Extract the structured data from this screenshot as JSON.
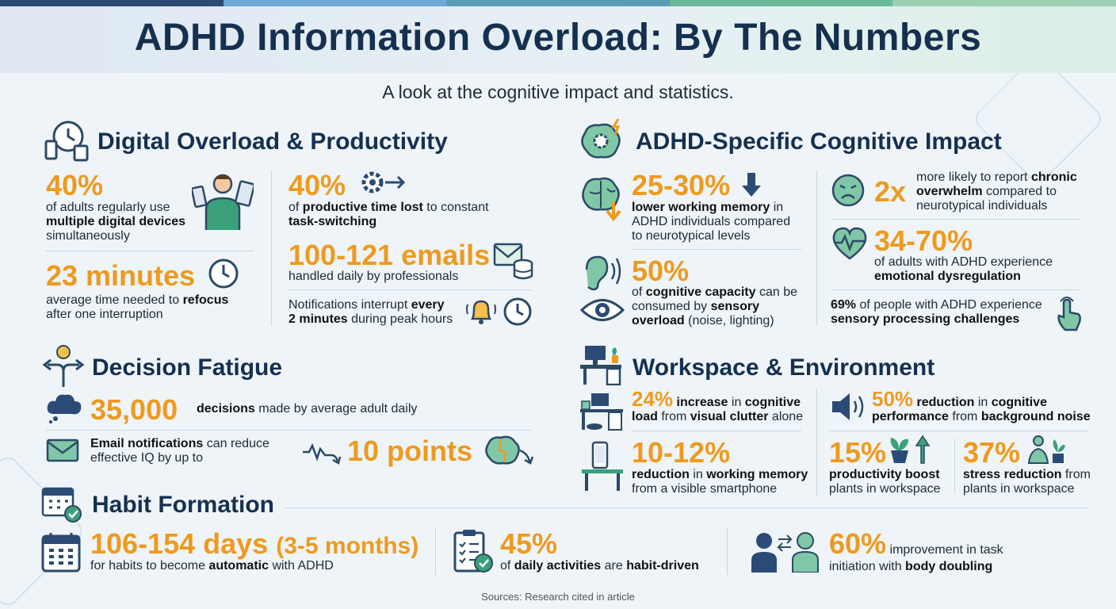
{
  "title": "ADHD Information Overload: By The Numbers",
  "subtitle": "A look at the cognitive impact and statistics.",
  "colors": {
    "accent": "#ee9a1f",
    "navy": "#15304f",
    "teal": "#3aa07a",
    "slate": "#2c4a66"
  },
  "digital": {
    "title": "Digital Overload & Productivity",
    "stat1": {
      "value": "40%",
      "line1": "of adults regularly use",
      "bold": "multiple digital devices",
      "line3": "simultaneously"
    },
    "stat2": {
      "value": "40%",
      "pre": "of ",
      "bold1": "productive time lost",
      "mid": " to constant ",
      "bold2": "task-switching"
    },
    "stat3": {
      "value": "23 minutes",
      "pre": "average time needed to ",
      "bold": "refocus",
      "post": "after one interruption"
    },
    "stat4": {
      "value": "100-121 emails",
      "text": "handled daily by professionals"
    },
    "stat5": {
      "pre": "Notifications interrupt ",
      "bold1": "every",
      "bold2": "2 minutes",
      "post": " during peak hours"
    }
  },
  "cognitive": {
    "title": "ADHD-Specific Cognitive Impact",
    "stat1": {
      "value": "25-30%",
      "bold": "lower working memory",
      "post1": " in",
      "line2": "ADHD individuals compared",
      "line3": "to neurotypical levels"
    },
    "stat2": {
      "value": "2x",
      "pre": "more likely to report ",
      "bold1": "chronic",
      "bold2": "overwhelm",
      "post": " compared to",
      "line3": "neurotypical individuals"
    },
    "stat3": {
      "value": "50%",
      "pre": "of ",
      "bold1": "cognitive capacity",
      "post1": " can be",
      "pre2": "consumed by ",
      "bold2": "sensory",
      "bold3": "overload",
      "post3": " (noise, lighting)"
    },
    "stat4": {
      "value": "34-70%",
      "line1": "of adults with ADHD experience",
      "bold": "emotional dysregulation"
    },
    "stat5": {
      "bold1": "69%",
      "post1": " of people with ADHD experience",
      "bold2": "sensory processing challenges"
    }
  },
  "decision": {
    "title": "Decision Fatigue",
    "stat1": {
      "value": "35,000",
      "bold": "decisions",
      "post": " made by average adult daily"
    },
    "stat2": {
      "bold": "Email notifications",
      "post": " can reduce",
      "line2": "effective IQ by up to",
      "value": "10 points"
    }
  },
  "workspace": {
    "title": "Workspace & Environment",
    "stat1": {
      "value": "24%",
      "mid": " increase",
      "post1": " in ",
      "bold1": "cognitive",
      "bold2": "load",
      "mid2": " from ",
      "bold3": "visual clutter",
      "post2": " alone"
    },
    "stat2": {
      "value": "50%",
      "mid": " reduction",
      "post1": " in ",
      "bold1": "cognitive",
      "bold2": "performance",
      "mid2": " from ",
      "bold3": "background noise"
    },
    "stat3": {
      "value": "10-12%",
      "bold1": "reduction",
      "mid": " in ",
      "bold2": "working memory",
      "line2": "from a visible smartphone"
    },
    "stat4": {
      "value": "15%",
      "bold": "productivity boost",
      "line2": "plants in workspace"
    },
    "stat5": {
      "value": "37%",
      "bold": "stress reduction",
      "post": " from",
      "line2": "plants in workspace"
    }
  },
  "habit": {
    "title": "Habit Formation",
    "stat1": {
      "value": "106-154 days",
      "paren": "(3-5 months)",
      "pre": "for habits to become ",
      "bold": "automatic",
      "post": " with ADHD"
    },
    "stat2": {
      "value": "45%",
      "pre": "of ",
      "bold": "daily activities",
      "mid": " are ",
      "bold2": "habit-driven"
    },
    "stat3": {
      "value": "60%",
      "post1": " improvement in task",
      "pre2": "initiation with ",
      "bold": "body doubling"
    }
  },
  "source": "Sources: Research cited in article"
}
